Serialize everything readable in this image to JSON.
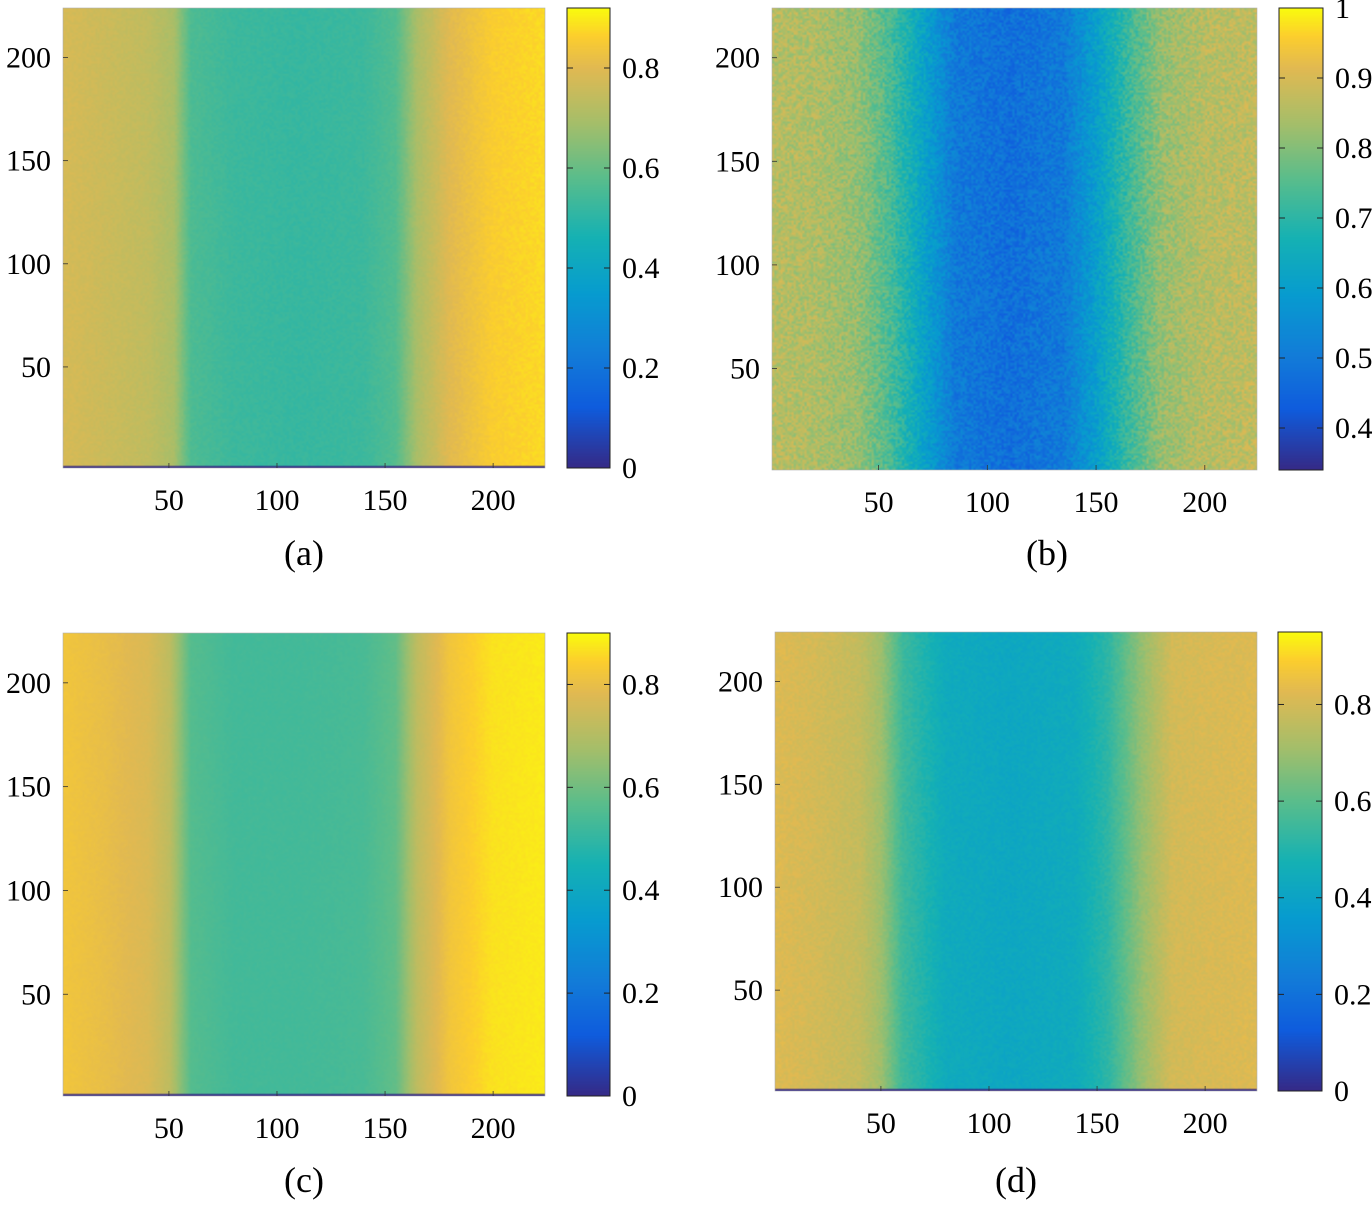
{
  "figure": {
    "description_free": true
  },
  "chart_data": [
    {
      "type": "heatmap",
      "caption": "(a)",
      "xlim": [
        1,
        224
      ],
      "ylim": [
        1,
        224
      ],
      "xticks": [
        50,
        100,
        150,
        200
      ],
      "yticks": [
        50,
        100,
        150,
        200
      ],
      "clim": [
        0,
        0.92
      ],
      "colorbar_ticks": [
        0,
        0.2,
        0.4,
        0.6,
        0.8
      ],
      "colorbar_labels": [
        "0",
        "0.2",
        "0.4",
        "0.6",
        "0.8"
      ],
      "profile_x": [
        1,
        20,
        40,
        52,
        60,
        80,
        110,
        140,
        155,
        165,
        180,
        200,
        224
      ],
      "profile_v": [
        0.78,
        0.76,
        0.74,
        0.7,
        0.56,
        0.53,
        0.52,
        0.53,
        0.57,
        0.7,
        0.8,
        0.86,
        0.88
      ],
      "noise": 0.012,
      "bottom_row_value": 0.0
    },
    {
      "type": "heatmap",
      "caption": "(b)",
      "xlim": [
        1,
        224
      ],
      "ylim": [
        1,
        224
      ],
      "xticks": [
        50,
        100,
        150,
        200
      ],
      "yticks": [
        50,
        100,
        150,
        200
      ],
      "clim": [
        0.34,
        1.0
      ],
      "colorbar_ticks": [
        0.4,
        0.5,
        0.6,
        0.7,
        0.8,
        0.9,
        1.0
      ],
      "colorbar_labels": [
        "0.4",
        "0.5",
        "0.6",
        "0.7",
        "0.8",
        "0.9",
        "1"
      ],
      "profile_x": [
        1,
        20,
        40,
        55,
        70,
        85,
        110,
        135,
        150,
        165,
        180,
        200,
        224
      ],
      "profile_v": [
        0.86,
        0.85,
        0.82,
        0.74,
        0.62,
        0.5,
        0.47,
        0.5,
        0.6,
        0.72,
        0.82,
        0.86,
        0.87
      ],
      "noise": 0.045,
      "bottom_row_value": null
    },
    {
      "type": "heatmap",
      "caption": "(c)",
      "xlim": [
        1,
        224
      ],
      "ylim": [
        1,
        224
      ],
      "xticks": [
        50,
        100,
        150,
        200
      ],
      "yticks": [
        50,
        100,
        150,
        200
      ],
      "clim": [
        0,
        0.9
      ],
      "colorbar_ticks": [
        0,
        0.2,
        0.4,
        0.6,
        0.8
      ],
      "colorbar_labels": [
        "0",
        "0.2",
        "0.4",
        "0.6",
        "0.8"
      ],
      "profile_x": [
        1,
        20,
        40,
        50,
        60,
        80,
        110,
        140,
        155,
        165,
        180,
        200,
        224
      ],
      "profile_v": [
        0.82,
        0.8,
        0.77,
        0.72,
        0.56,
        0.53,
        0.53,
        0.54,
        0.58,
        0.72,
        0.82,
        0.87,
        0.88
      ],
      "noise": 0.006,
      "bottom_row_value": 0.0
    },
    {
      "type": "heatmap",
      "caption": "(d)",
      "xlim": [
        1,
        224
      ],
      "ylim": [
        1,
        224
      ],
      "xticks": [
        50,
        100,
        150,
        200
      ],
      "yticks": [
        50,
        100,
        150,
        200
      ],
      "clim": [
        0,
        0.95
      ],
      "colorbar_ticks": [
        0,
        0.2,
        0.4,
        0.6,
        0.8
      ],
      "colorbar_labels": [
        "0",
        "0.2",
        "0.4",
        "0.6",
        "0.8"
      ],
      "profile_x": [
        1,
        20,
        40,
        50,
        60,
        80,
        110,
        140,
        155,
        170,
        185,
        200,
        224
      ],
      "profile_v": [
        0.82,
        0.8,
        0.77,
        0.7,
        0.55,
        0.44,
        0.42,
        0.44,
        0.52,
        0.68,
        0.8,
        0.81,
        0.82
      ],
      "noise": 0.02,
      "bottom_row_value": 0.0
    }
  ]
}
